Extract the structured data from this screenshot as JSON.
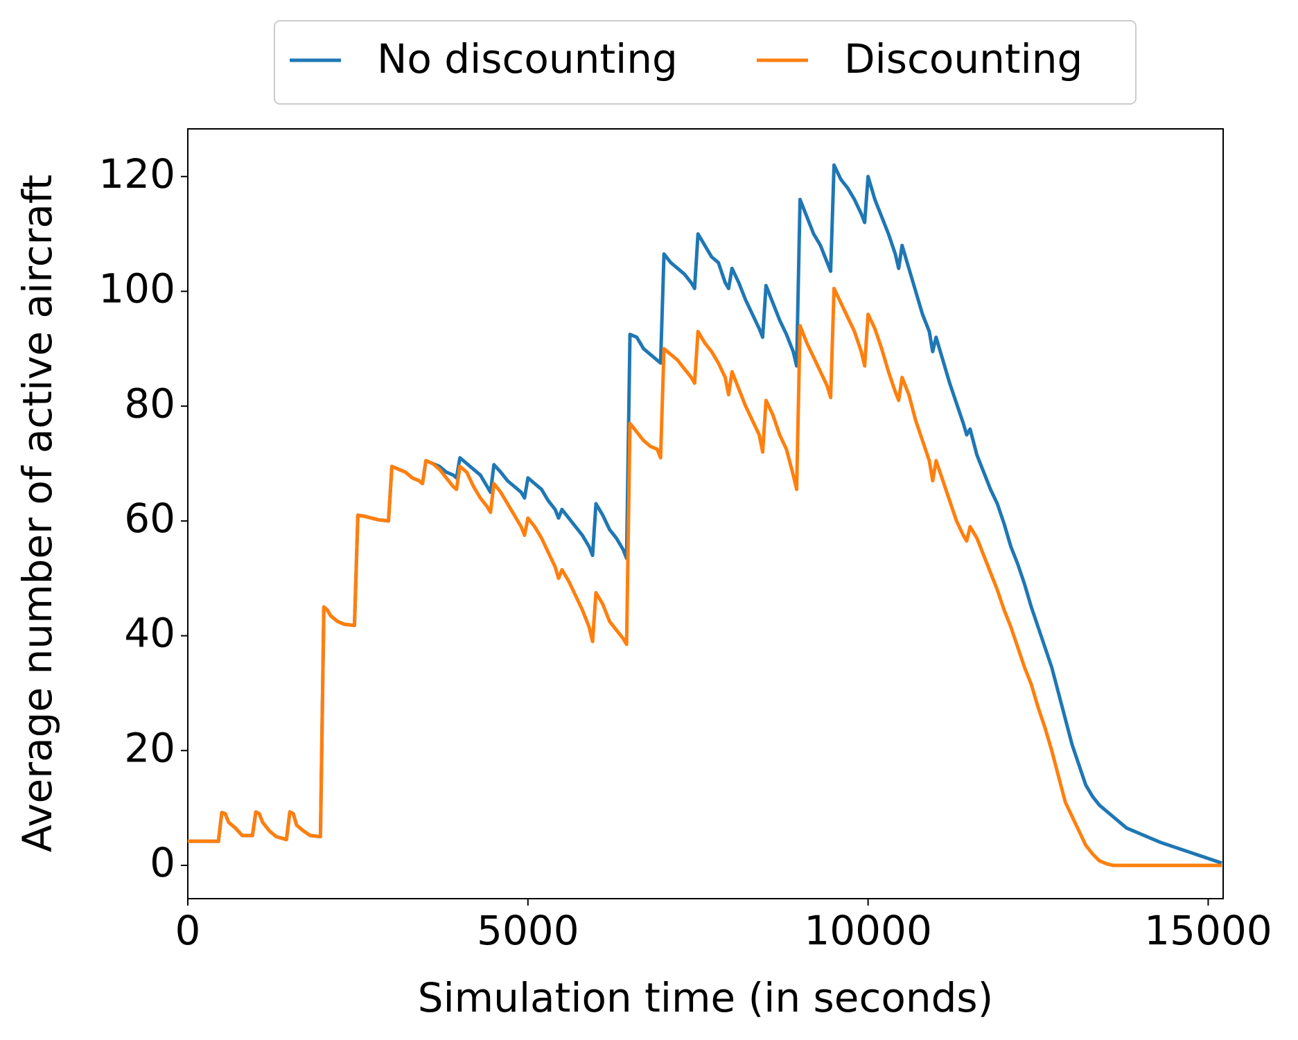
{
  "chart_data": {
    "type": "line",
    "xlabel": "Simulation time (in seconds)",
    "ylabel": "Average number of active aircraft",
    "x": [
      0,
      450,
      500,
      550,
      600,
      700,
      800,
      950,
      1000,
      1050,
      1100,
      1200,
      1300,
      1450,
      1500,
      1550,
      1600,
      1700,
      1800,
      1950,
      2000,
      2050,
      2100,
      2200,
      2300,
      2450,
      2500,
      2600,
      2700,
      2800,
      2950,
      3000,
      3100,
      3200,
      3300,
      3400,
      3450,
      3500,
      3600,
      3700,
      3800,
      3900,
      3950,
      4000,
      4100,
      4200,
      4300,
      4400,
      4450,
      4500,
      4600,
      4700,
      4800,
      4900,
      4950,
      5000,
      5100,
      5200,
      5300,
      5400,
      5450,
      5500,
      5600,
      5700,
      5800,
      5900,
      5950,
      6000,
      6100,
      6200,
      6300,
      6400,
      6450,
      6500,
      6600,
      6700,
      6800,
      6900,
      6950,
      7000,
      7100,
      7200,
      7300,
      7400,
      7450,
      7500,
      7600,
      7700,
      7800,
      7900,
      7950,
      8000,
      8100,
      8200,
      8300,
      8400,
      8450,
      8500,
      8600,
      8700,
      8800,
      8900,
      8950,
      9000,
      9100,
      9200,
      9300,
      9400,
      9450,
      9500,
      9600,
      9700,
      9800,
      9900,
      9950,
      10000,
      10100,
      10200,
      10300,
      10400,
      10450,
      10500,
      10600,
      10700,
      10800,
      10900,
      10950,
      11000,
      11100,
      11200,
      11300,
      11400,
      11450,
      11500,
      11600,
      11700,
      11800,
      11900,
      12000,
      12100,
      12200,
      12300,
      12400,
      12500,
      12600,
      12700,
      12800,
      12900,
      13000,
      13100,
      13200,
      13300,
      13400,
      13500,
      13600,
      13700,
      13800,
      13900,
      14000,
      14100,
      14200,
      14300,
      14400,
      14500,
      14600,
      14700,
      14800,
      15200
    ],
    "series": [
      {
        "name": "No discounting",
        "color": "#1f77b4",
        "values": [
          4.2,
          4.2,
          9.2,
          9,
          7.5,
          6.5,
          5.2,
          5.2,
          9.3,
          9,
          7.5,
          6,
          5,
          4.5,
          9.3,
          9,
          7,
          6,
          5.2,
          5,
          45,
          44.5,
          43.5,
          42.5,
          42,
          41.8,
          61,
          60.8,
          60.5,
          60.2,
          60,
          69.5,
          69,
          68.5,
          67.5,
          67,
          66.5,
          70.5,
          70,
          69.5,
          68.5,
          68,
          67.5,
          71,
          70,
          69,
          68,
          66,
          65,
          69.8,
          68.5,
          67,
          66,
          65,
          64,
          67.5,
          66.5,
          65.5,
          63.5,
          62,
          60.5,
          62,
          60.5,
          59,
          57.5,
          55.5,
          54,
          63,
          61,
          58.5,
          57,
          55,
          53.5,
          92.5,
          92,
          90,
          89,
          88,
          87.5,
          106.5,
          105,
          104,
          103,
          101.5,
          100.5,
          110,
          108,
          106,
          105,
          101.5,
          100.5,
          104,
          101.5,
          98.5,
          96,
          93.5,
          92,
          101,
          98,
          95,
          92.5,
          89.5,
          87,
          116,
          113,
          110,
          108,
          105,
          103.5,
          122,
          119.5,
          118,
          116,
          113.5,
          112,
          120,
          116,
          113,
          110,
          106.5,
          104,
          108,
          104,
          100,
          96,
          93,
          89.5,
          92,
          88,
          84,
          80.5,
          77,
          75,
          76,
          71.5,
          68.5,
          65.5,
          63,
          59.5,
          55.5,
          52.5,
          49,
          45,
          41.5,
          38,
          34.5,
          30,
          25.5,
          21,
          17.5,
          14,
          12,
          10.5,
          9.5,
          8.5,
          7.5,
          6.5,
          6,
          5.5,
          5,
          4.5,
          4,
          3.6,
          3.2,
          2.8,
          2.4,
          2,
          0.4
        ]
      },
      {
        "name": "Discounting",
        "color": "#ff7f0e",
        "values": [
          4.2,
          4.2,
          9.2,
          9,
          7.5,
          6.5,
          5.2,
          5.2,
          9.3,
          9,
          7.5,
          6,
          5,
          4.5,
          9.3,
          9,
          7,
          6,
          5.2,
          5,
          45,
          44.5,
          43.5,
          42.5,
          42,
          41.8,
          61,
          60.8,
          60.5,
          60.2,
          60,
          69.5,
          69,
          68.5,
          67.5,
          67,
          66.5,
          70.5,
          70,
          69,
          67.5,
          66,
          65.5,
          69.5,
          68.5,
          66,
          64,
          62.5,
          61.5,
          66.5,
          65,
          63,
          61,
          59,
          57.5,
          60.5,
          59,
          57,
          54.5,
          52,
          50,
          51.5,
          49.5,
          47,
          44.5,
          41.5,
          39,
          47.5,
          45.5,
          42.5,
          41,
          39.5,
          38.5,
          77,
          75.5,
          74,
          73,
          72.5,
          71,
          90,
          89,
          88,
          86.5,
          85,
          84,
          93,
          91,
          89.5,
          87.5,
          85,
          82,
          86,
          83,
          80,
          77.5,
          75,
          72,
          81,
          78.5,
          75,
          72.5,
          68,
          65.5,
          94,
          91,
          88.5,
          86,
          83.5,
          81.5,
          100.5,
          98,
          95.5,
          93,
          89.5,
          87,
          96,
          93.5,
          90,
          86,
          82.5,
          81,
          85,
          82,
          77.5,
          74,
          70.5,
          67,
          70.5,
          67,
          63.5,
          60,
          57.5,
          56.5,
          59,
          57,
          54,
          51,
          48,
          44.5,
          41.5,
          38,
          34.5,
          31.5,
          27.5,
          24,
          20,
          15.5,
          11,
          8.5,
          6,
          3.5,
          2,
          0.8,
          0.3,
          0,
          0,
          0,
          0,
          0,
          0,
          0,
          0,
          0,
          0,
          0,
          0,
          0,
          0
        ]
      }
    ],
    "xlim": [
      0,
      15220
    ],
    "xticks": [
      0,
      5000,
      10000,
      15000
    ],
    "ylim": [
      -5.8,
      128.3
    ],
    "yticks": [
      0,
      20,
      40,
      60,
      80,
      100,
      120
    ],
    "grid": false,
    "legend": "top"
  }
}
